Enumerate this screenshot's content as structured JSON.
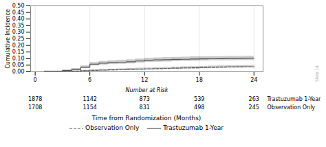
{
  "chart_data": {
    "type": "step",
    "title": "",
    "xlabel": "Time from Randomization (Months)",
    "ylabel": "Cumulative Incidence",
    "xlim": [
      -0.5,
      25
    ],
    "ylim": [
      0.0,
      0.5
    ],
    "xticks": [
      0,
      6,
      12,
      18,
      24
    ],
    "yticks": [
      {
        "value": 0.0,
        "label": "0.00"
      },
      0.05,
      {
        "value": 0.1,
        "label": "0.10"
      },
      0.15,
      {
        "value": 0.2,
        "label": "0.20"
      },
      0.25,
      {
        "value": 0.3,
        "label": "0.30"
      },
      0.35,
      {
        "value": 0.4,
        "label": "0.40"
      },
      0.45,
      {
        "value": 0.5,
        "label": "0.50"
      }
    ],
    "grid": "x",
    "legend": "bottom",
    "series": [
      {
        "name": "Trastuzumab 1-Year",
        "color": "#555555",
        "line_style": "solid",
        "x": [
          0,
          1,
          3,
          4,
          5,
          6,
          7,
          8,
          9,
          10,
          11,
          12,
          13,
          14,
          15,
          16,
          17,
          18,
          19,
          20,
          21,
          22,
          23,
          24
        ],
        "values": [
          0.0,
          0.003,
          0.01,
          0.018,
          0.035,
          0.058,
          0.065,
          0.07,
          0.073,
          0.076,
          0.082,
          0.088,
          0.09,
          0.092,
          0.094,
          0.095,
          0.097,
          0.098,
          0.099,
          0.1,
          0.101,
          0.101,
          0.102,
          0.102
        ],
        "ci_upper": [
          0.0,
          0.006,
          0.016,
          0.026,
          0.046,
          0.072,
          0.08,
          0.085,
          0.089,
          0.092,
          0.098,
          0.104,
          0.107,
          0.109,
          0.111,
          0.112,
          0.114,
          0.115,
          0.116,
          0.116,
          0.117,
          0.117,
          0.118,
          0.118
        ],
        "ci_lower": [
          0.0,
          0.001,
          0.005,
          0.011,
          0.025,
          0.045,
          0.051,
          0.056,
          0.058,
          0.061,
          0.067,
          0.073,
          0.074,
          0.076,
          0.078,
          0.079,
          0.081,
          0.082,
          0.083,
          0.084,
          0.085,
          0.086,
          0.086,
          0.086
        ]
      },
      {
        "name": "Observation Only",
        "color": "#555555",
        "line_style": "dashed",
        "x": [
          0,
          1,
          3,
          4,
          5,
          6,
          7,
          8,
          9,
          10,
          11,
          12,
          13,
          14,
          15,
          16,
          17,
          18,
          19,
          20,
          21,
          22,
          23,
          24
        ],
        "values": [
          0.0,
          0.001,
          0.003,
          0.005,
          0.008,
          0.011,
          0.013,
          0.015,
          0.017,
          0.019,
          0.02,
          0.022,
          0.024,
          0.026,
          0.028,
          0.03,
          0.031,
          0.033,
          0.035,
          0.036,
          0.037,
          0.038,
          0.039,
          0.04
        ],
        "ci_upper": [
          0.0,
          0.002,
          0.006,
          0.009,
          0.013,
          0.017,
          0.019,
          0.021,
          0.024,
          0.026,
          0.028,
          0.03,
          0.032,
          0.034,
          0.037,
          0.039,
          0.04,
          0.042,
          0.044,
          0.046,
          0.047,
          0.048,
          0.049,
          0.05
        ],
        "ci_lower": [
          0.0,
          0.0,
          0.001,
          0.002,
          0.004,
          0.006,
          0.007,
          0.009,
          0.01,
          0.012,
          0.013,
          0.014,
          0.016,
          0.018,
          0.02,
          0.021,
          0.022,
          0.024,
          0.026,
          0.027,
          0.028,
          0.029,
          0.03,
          0.031
        ]
      }
    ],
    "number_at_risk": {
      "label": "Number at Risk",
      "x": [
        0,
        6,
        12,
        18,
        24
      ],
      "rows": [
        {
          "name": "Trastuzumab 1-Year",
          "values": [
            1878,
            1142,
            873,
            539,
            263
          ]
        },
        {
          "name": "Observation Only",
          "values": [
            1708,
            1154,
            831,
            498,
            245
          ]
        }
      ]
    },
    "annotations": [
      "Slide 14"
    ]
  }
}
